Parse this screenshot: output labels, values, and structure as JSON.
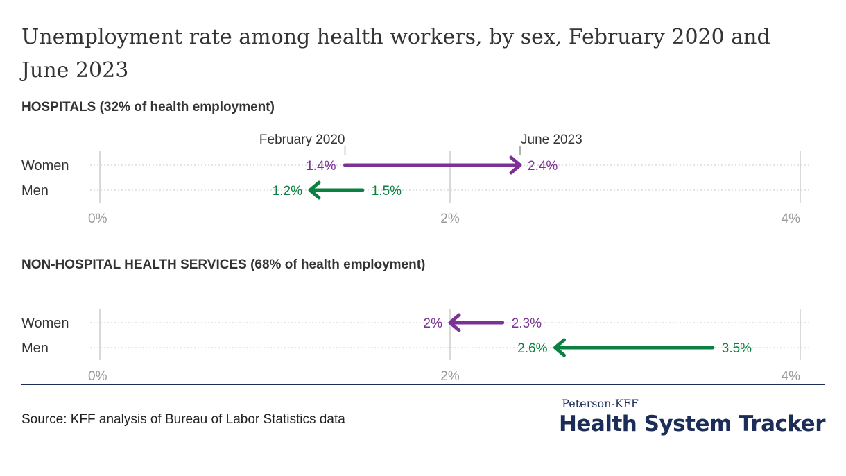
{
  "title": "Unemployment rate among health workers, by sex, February 2020 and June 2023",
  "source": "Source: KFF analysis of Bureau of Labor Statistics data",
  "brand": {
    "line1": "Peterson-KFF",
    "line2": "Health System Tracker"
  },
  "colors": {
    "women": "#7b3294",
    "men": "#0a8140",
    "grid": "#cccccc",
    "axis_text": "#999999",
    "brand": "#1c2d57"
  },
  "chart_data": [
    {
      "type": "dumbbell",
      "title": "HOSPITALS (32% of health employment)",
      "start_label": "February 2020",
      "end_label": "June 2023",
      "xlim": [
        0,
        4
      ],
      "ticks": [
        "0%",
        "2%",
        "4%"
      ],
      "tick_values": [
        0,
        2,
        4
      ],
      "rows": [
        {
          "name": "Women",
          "from": 1.4,
          "to": 2.4,
          "from_label": "1.4%",
          "to_label": "2.4%",
          "color": "#7b3294"
        },
        {
          "name": "Men",
          "from": 1.5,
          "to": 1.2,
          "from_label": "1.5%",
          "to_label": "1.2%",
          "color": "#0a8140"
        }
      ]
    },
    {
      "type": "dumbbell",
      "title": "NON-HOSPITAL HEALTH SERVICES (68% of health employment)",
      "xlim": [
        0,
        4
      ],
      "ticks": [
        "0%",
        "2%",
        "4%"
      ],
      "tick_values": [
        0,
        2,
        4
      ],
      "rows": [
        {
          "name": "Women",
          "from": 2.3,
          "to": 2.0,
          "from_label": "2.3%",
          "to_label": "2%",
          "color": "#7b3294"
        },
        {
          "name": "Men",
          "from": 3.5,
          "to": 2.6,
          "from_label": "3.5%",
          "to_label": "2.6%",
          "color": "#0a8140"
        }
      ]
    }
  ]
}
